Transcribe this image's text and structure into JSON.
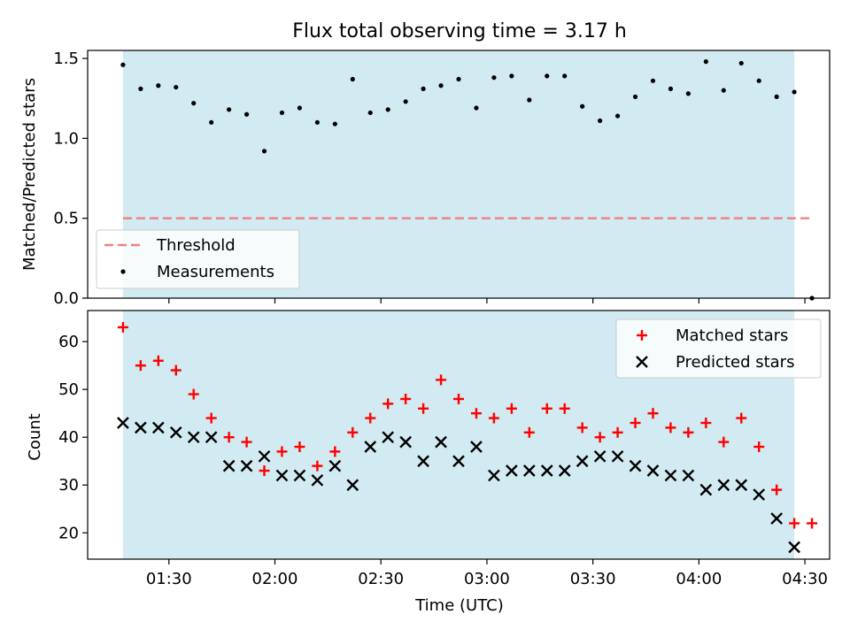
{
  "figure": {
    "title": "Flux total observing time = 3.17 h",
    "xlabel": "Time (UTC)",
    "colors": {
      "shade": "#add8e6",
      "threshold": "#f08080",
      "measurements": "#000000",
      "matched": "#ff0000",
      "predicted": "#000000"
    }
  },
  "chart_data": [
    {
      "type": "scatter",
      "ylabel": "Matched/Predicted stars",
      "xlim": [
        "01:07",
        "04:37"
      ],
      "ylim": [
        0,
        1.55
      ],
      "yticks": [
        0.0,
        0.5,
        1.0,
        1.5
      ],
      "ytick_labels": [
        "0.0",
        "0.5",
        "1.0",
        "1.5"
      ],
      "grid": false,
      "legend": "lower-left",
      "shaded_span": [
        "01:17",
        "04:27"
      ],
      "threshold": {
        "name": "Threshold",
        "y": 0.5,
        "x": [
          "01:17",
          "04:32"
        ]
      },
      "series": [
        {
          "name": "Measurements",
          "x": [
            "01:17",
            "01:22",
            "01:27",
            "01:32",
            "01:37",
            "01:42",
            "01:47",
            "01:52",
            "01:57",
            "02:02",
            "02:07",
            "02:12",
            "02:17",
            "02:22",
            "02:27",
            "02:32",
            "02:37",
            "02:42",
            "02:47",
            "02:52",
            "02:57",
            "03:02",
            "03:07",
            "03:12",
            "03:17",
            "03:22",
            "03:27",
            "03:32",
            "03:37",
            "03:42",
            "03:47",
            "03:52",
            "03:57",
            "04:02",
            "04:07",
            "04:12",
            "04:17",
            "04:22",
            "04:27",
            "04:32"
          ],
          "y": [
            1.46,
            1.31,
            1.33,
            1.32,
            1.22,
            1.1,
            1.18,
            1.15,
            0.92,
            1.16,
            1.19,
            1.1,
            1.09,
            1.37,
            1.16,
            1.18,
            1.23,
            1.31,
            1.33,
            1.37,
            1.19,
            1.38,
            1.39,
            1.24,
            1.39,
            1.39,
            1.2,
            1.11,
            1.14,
            1.26,
            1.36,
            1.31,
            1.28,
            1.48,
            1.3,
            1.47,
            1.36,
            1.26,
            1.29,
            0.0
          ]
        }
      ]
    },
    {
      "type": "scatter",
      "ylabel": "Count",
      "xlim": [
        "01:07",
        "04:37"
      ],
      "ylim": [
        14.5,
        66.5
      ],
      "yticks": [
        20,
        30,
        40,
        50,
        60
      ],
      "ytick_labels": [
        "20",
        "30",
        "40",
        "50",
        "60"
      ],
      "xticks": [
        "01:30",
        "02:00",
        "02:30",
        "03:00",
        "03:30",
        "04:00",
        "04:30"
      ],
      "grid": false,
      "legend": "top-right",
      "shaded_span": [
        "01:17",
        "04:27"
      ],
      "series": [
        {
          "name": "Matched stars",
          "marker": "+",
          "x": [
            "01:17",
            "01:22",
            "01:27",
            "01:32",
            "01:37",
            "01:42",
            "01:47",
            "01:52",
            "01:57",
            "02:02",
            "02:07",
            "02:12",
            "02:17",
            "02:22",
            "02:27",
            "02:32",
            "02:37",
            "02:42",
            "02:47",
            "02:52",
            "02:57",
            "03:02",
            "03:07",
            "03:12",
            "03:17",
            "03:22",
            "03:27",
            "03:32",
            "03:37",
            "03:42",
            "03:47",
            "03:52",
            "03:57",
            "04:02",
            "04:07",
            "04:12",
            "04:17",
            "04:22",
            "04:27",
            "04:32"
          ],
          "y": [
            63,
            55,
            56,
            54,
            49,
            44,
            40,
            39,
            33,
            37,
            38,
            34,
            37,
            41,
            44,
            47,
            48,
            46,
            52,
            48,
            45,
            44,
            46,
            41,
            46,
            46,
            42,
            40,
            41,
            43,
            45,
            42,
            41,
            43,
            39,
            44,
            38,
            29,
            22,
            22
          ]
        },
        {
          "name": "Predicted stars",
          "marker": "x",
          "x": [
            "01:17",
            "01:22",
            "01:27",
            "01:32",
            "01:37",
            "01:42",
            "01:47",
            "01:52",
            "01:57",
            "02:02",
            "02:07",
            "02:12",
            "02:17",
            "02:22",
            "02:27",
            "02:32",
            "02:37",
            "02:42",
            "02:47",
            "02:52",
            "02:57",
            "03:02",
            "03:07",
            "03:12",
            "03:17",
            "03:22",
            "03:27",
            "03:32",
            "03:37",
            "03:42",
            "03:47",
            "03:52",
            "03:57",
            "04:02",
            "04:07",
            "04:12",
            "04:17",
            "04:22",
            "04:27"
          ],
          "y": [
            43,
            42,
            42,
            41,
            40,
            40,
            34,
            34,
            36,
            32,
            32,
            31,
            34,
            30,
            38,
            40,
            39,
            35,
            39,
            35,
            38,
            32,
            33,
            33,
            33,
            33,
            35,
            36,
            36,
            34,
            33,
            32,
            32,
            29,
            30,
            30,
            28,
            23,
            17
          ]
        }
      ]
    }
  ]
}
